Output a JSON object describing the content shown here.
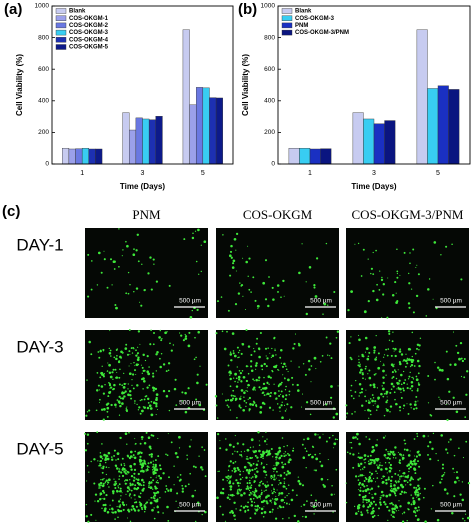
{
  "chart_data": [
    {
      "type": "bar",
      "panel_label": "(a)",
      "y_label": "Cell Viability (%)",
      "x_label": "Time (Days)",
      "categories": [
        "1",
        "3",
        "5"
      ],
      "ylim": [
        0,
        1000
      ],
      "yticks": [
        0,
        200,
        400,
        600,
        800,
        1000
      ],
      "legend": "upper left",
      "series": [
        {
          "name": "Blank",
          "color": "#c7cbf0",
          "values": [
            100,
            325,
            850
          ]
        },
        {
          "name": "COS-OKGM-1",
          "color": "#9ba0ea",
          "values": [
            95,
            215,
            375
          ]
        },
        {
          "name": "COS-OKGM-2",
          "color": "#6a78e2",
          "values": [
            97,
            292,
            485
          ]
        },
        {
          "name": "COS-OKGM-3",
          "color": "#38cdf2",
          "values": [
            100,
            285,
            482
          ]
        },
        {
          "name": "COS-OKGM-4",
          "color": "#1d30b2",
          "values": [
            95,
            280,
            420
          ]
        },
        {
          "name": "COS-OKGM-5",
          "color": "#0d1a8a",
          "values": [
            95,
            302,
            418
          ]
        }
      ]
    },
    {
      "type": "bar",
      "panel_label": "(b)",
      "y_label": "Cell Viability (%)",
      "x_label": "Time (Days)",
      "categories": [
        "1",
        "3",
        "5"
      ],
      "ylim": [
        0,
        1000
      ],
      "yticks": [
        0,
        200,
        400,
        600,
        800,
        1000
      ],
      "legend": "upper left",
      "series": [
        {
          "name": "Blank",
          "color": "#c7cbf0",
          "values": [
            100,
            325,
            850
          ]
        },
        {
          "name": "COS-OKGM-3",
          "color": "#38cdf2",
          "values": [
            100,
            285,
            478
          ]
        },
        {
          "name": "PNM",
          "color": "#1a30c2",
          "values": [
            95,
            255,
            495
          ]
        },
        {
          "name": "COS-OKGM-3/PNM",
          "color": "#0a1580",
          "values": [
            97,
            275,
            472
          ]
        }
      ]
    }
  ],
  "images": {
    "panel_label": "(c)",
    "columns": [
      "PNM",
      "COS-OKGM",
      "COS-OKGM-3/PNM"
    ],
    "rows": [
      "DAY-1",
      "DAY-3",
      "DAY-5"
    ],
    "scale_bar": "500 µm"
  }
}
